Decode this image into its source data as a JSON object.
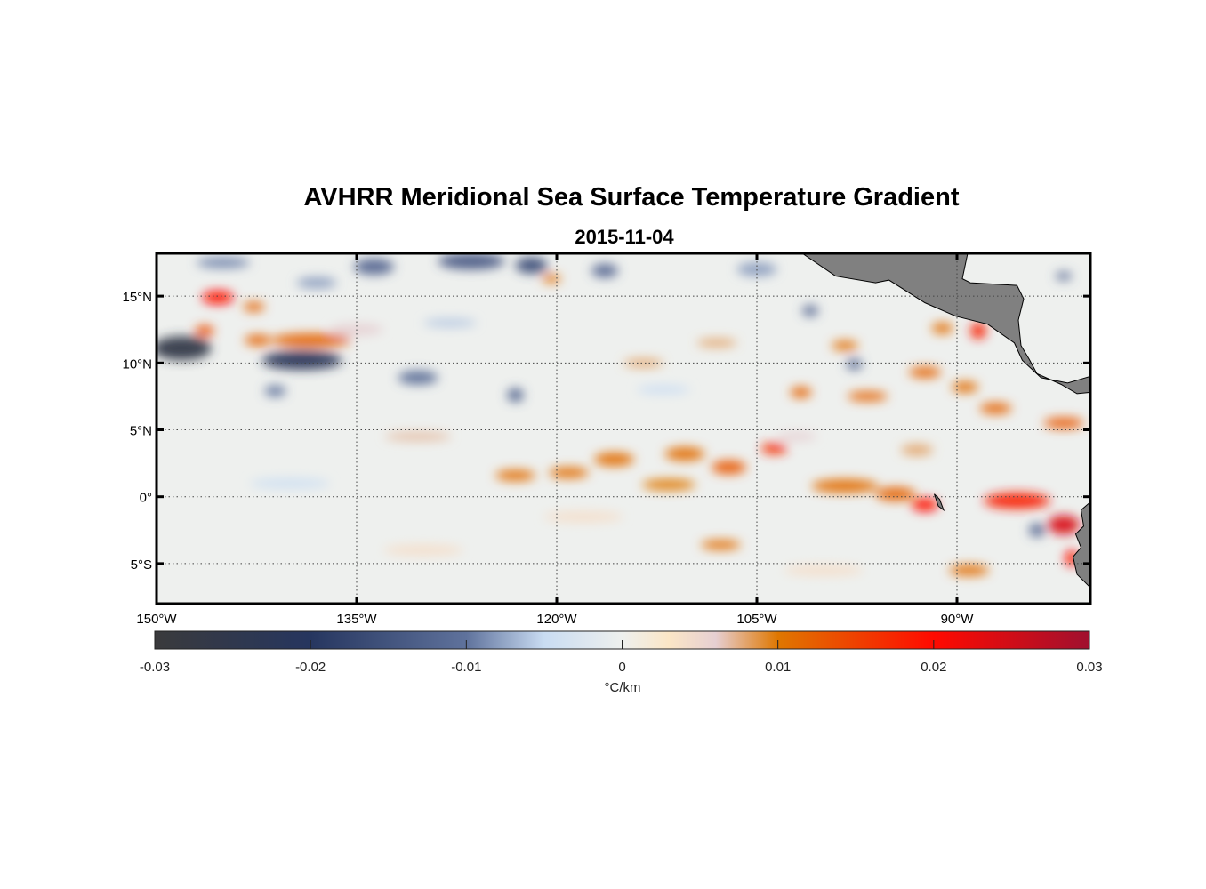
{
  "chart_data": {
    "type": "heatmap",
    "title": "AVHRR Meridional Sea Surface Temperature Gradient",
    "subtitle": "2015-11-04",
    "xlim": [
      -150,
      -80
    ],
    "ylim": [
      -8,
      18.2
    ],
    "grid": true,
    "x_ticks": [
      {
        "value": -150,
        "label": "150°W"
      },
      {
        "value": -135,
        "label": "135°W"
      },
      {
        "value": -120,
        "label": "120°W"
      },
      {
        "value": -105,
        "label": "105°W"
      },
      {
        "value": -90,
        "label": "90°W"
      }
    ],
    "y_ticks": [
      {
        "value": 15,
        "label": "15°N"
      },
      {
        "value": 10,
        "label": "10°N"
      },
      {
        "value": 5,
        "label": "5°N"
      },
      {
        "value": 0,
        "label": "0°"
      },
      {
        "value": -5,
        "label": "5°S"
      }
    ],
    "colorbar": {
      "label": "°C/km",
      "range": [
        -0.03,
        0.03
      ],
      "ticks": [
        {
          "value": -0.03,
          "label": "-0.03"
        },
        {
          "value": -0.02,
          "label": "-0.02"
        },
        {
          "value": -0.01,
          "label": "-0.01"
        },
        {
          "value": 0,
          "label": "0"
        },
        {
          "value": 0.01,
          "label": "0.01"
        },
        {
          "value": 0.02,
          "label": "0.02"
        },
        {
          "value": 0.03,
          "label": "0.03"
        }
      ],
      "stops": [
        [
          -0.03,
          "#3a3a3c"
        ],
        [
          -0.02,
          "#26365f"
        ],
        [
          -0.01,
          "#5f729c"
        ],
        [
          -0.005,
          "#c9dcf2"
        ],
        [
          0,
          "#eef0ee"
        ],
        [
          0.003,
          "#fbe6c6"
        ],
        [
          0.006,
          "#e6cfd2"
        ],
        [
          0.01,
          "#df7700"
        ],
        [
          0.02,
          "#ff0a00"
        ],
        [
          0.03,
          "#a0102f"
        ]
      ]
    },
    "features": [
      [
        -145.4,
        14.9,
        1.2,
        0.5,
        0.02
      ],
      [
        -148.1,
        11.1,
        2.2,
        0.9,
        -0.026
      ],
      [
        -139.1,
        10.2,
        3.0,
        0.7,
        -0.022
      ],
      [
        -138.4,
        11.7,
        3.0,
        0.5,
        0.012
      ],
      [
        -142.4,
        11.7,
        1.0,
        0.4,
        0.012
      ],
      [
        -146.4,
        12.4,
        0.7,
        0.4,
        0.014
      ],
      [
        -142.7,
        14.2,
        0.8,
        0.35,
        0.012
      ],
      [
        -133.7,
        17.2,
        1.5,
        0.6,
        -0.012
      ],
      [
        -126.4,
        17.6,
        2.5,
        0.6,
        -0.014
      ],
      [
        -121.9,
        17.3,
        1.2,
        0.6,
        -0.016
      ],
      [
        -116.4,
        16.9,
        1.0,
        0.5,
        -0.012
      ],
      [
        -120.4,
        16.3,
        0.7,
        0.3,
        0.011
      ],
      [
        -130.4,
        8.9,
        1.5,
        0.5,
        -0.011
      ],
      [
        -123.1,
        7.6,
        0.6,
        0.5,
        -0.013
      ],
      [
        -141.1,
        7.9,
        0.8,
        0.4,
        -0.01
      ],
      [
        -130.4,
        4.5,
        2.5,
        0.3,
        0.007
      ],
      [
        -123.1,
        1.6,
        1.5,
        0.4,
        0.011
      ],
      [
        -119.1,
        1.8,
        1.5,
        0.4,
        0.011
      ],
      [
        -115.7,
        2.8,
        1.5,
        0.5,
        0.011
      ],
      [
        -110.4,
        3.2,
        1.5,
        0.5,
        0.011
      ],
      [
        -107.1,
        2.2,
        1.3,
        0.5,
        0.013
      ],
      [
        -103.7,
        3.6,
        1.0,
        0.4,
        0.017
      ],
      [
        -111.6,
        0.9,
        2.0,
        0.4,
        0.01
      ],
      [
        -98.4,
        0.8,
        2.5,
        0.5,
        0.011
      ],
      [
        -92.4,
        -0.6,
        1.0,
        0.5,
        0.02
      ],
      [
        -94.6,
        0.2,
        1.5,
        0.5,
        0.012
      ],
      [
        -85.5,
        -0.3,
        2.5,
        0.6,
        0.018
      ],
      [
        -82.0,
        -2.1,
        1.2,
        0.7,
        0.024
      ],
      [
        -88.4,
        12.4,
        0.6,
        0.6,
        0.018
      ],
      [
        -91.1,
        12.6,
        0.8,
        0.4,
        0.011
      ],
      [
        -92.4,
        9.3,
        1.2,
        0.4,
        0.012
      ],
      [
        -96.7,
        7.5,
        1.5,
        0.35,
        0.012
      ],
      [
        -101.7,
        7.8,
        0.8,
        0.4,
        0.012
      ],
      [
        -89.4,
        8.2,
        1.0,
        0.4,
        0.011
      ],
      [
        -87.1,
        6.6,
        1.2,
        0.4,
        0.012
      ],
      [
        -82.0,
        5.5,
        1.5,
        0.4,
        0.013
      ],
      [
        -107.7,
        -3.6,
        1.5,
        0.35,
        0.011
      ],
      [
        -98.4,
        11.3,
        1.0,
        0.35,
        0.011
      ],
      [
        -97.7,
        9.9,
        0.6,
        0.4,
        -0.012
      ],
      [
        -101.0,
        13.9,
        0.6,
        0.4,
        -0.012
      ],
      [
        -89.1,
        -5.5,
        1.5,
        0.4,
        0.011
      ],
      [
        -81.4,
        -4.6,
        0.5,
        0.6,
        0.02
      ],
      [
        -113.5,
        10.0,
        1.5,
        0.3,
        0.008
      ],
      [
        -108.0,
        11.5,
        1.5,
        0.3,
        0.008
      ],
      [
        -102.0,
        4.5,
        1.5,
        0.3,
        0.006
      ],
      [
        -84.0,
        -2.5,
        0.6,
        0.5,
        -0.012
      ],
      [
        -93.0,
        3.5,
        1.2,
        0.4,
        0.008
      ],
      [
        -112.0,
        8.0,
        2.0,
        0.3,
        -0.005
      ],
      [
        -135.0,
        12.5,
        2.0,
        0.4,
        0.006
      ],
      [
        -128.0,
        13.0,
        2.0,
        0.3,
        -0.006
      ],
      [
        -145.0,
        17.5,
        2.0,
        0.4,
        -0.009
      ],
      [
        -138.0,
        16.0,
        1.5,
        0.4,
        -0.008
      ],
      [
        -105.0,
        17.0,
        1.5,
        0.5,
        -0.008
      ],
      [
        -118.0,
        -1.5,
        3.0,
        0.4,
        0.004
      ],
      [
        -140.0,
        1.0,
        3.0,
        0.4,
        -0.004
      ],
      [
        -130.0,
        -4.0,
        3.0,
        0.4,
        0.004
      ],
      [
        -100.0,
        -5.5,
        3.0,
        0.4,
        0.004
      ],
      [
        -82.0,
        16.5,
        0.6,
        0.3,
        -0.012
      ]
    ],
    "land": [
      [
        [
          -101.6,
          18.2
        ],
        [
          -99.1,
          16.5
        ],
        [
          -96.1,
          16.0
        ],
        [
          -95.1,
          16.2
        ],
        [
          -92.4,
          14.5
        ],
        [
          -90.1,
          13.5
        ],
        [
          -87.7,
          12.9
        ],
        [
          -85.7,
          11.5
        ],
        [
          -85.1,
          10.2
        ],
        [
          -83.7,
          8.9
        ],
        [
          -81.7,
          8.5
        ],
        [
          -80,
          9.0
        ],
        [
          -80,
          7.8
        ],
        [
          -81,
          7.7
        ],
        [
          -82.2,
          8.4
        ],
        [
          -84.0,
          9.2
        ],
        [
          -84.6,
          10.3
        ],
        [
          -85.2,
          11.3
        ],
        [
          -85.4,
          13.2
        ],
        [
          -85.0,
          14.8
        ],
        [
          -85.5,
          15.8
        ],
        [
          -87.2,
          15.9
        ],
        [
          -89.0,
          16.0
        ],
        [
          -89.6,
          16.3
        ],
        [
          -89.2,
          18.2
        ]
      ],
      [
        [
          -80,
          -0.4
        ],
        [
          -80.7,
          -1.0
        ],
        [
          -80.5,
          -2.2
        ],
        [
          -81.1,
          -2.8
        ],
        [
          -80.7,
          -3.8
        ],
        [
          -81.3,
          -4.5
        ],
        [
          -81.0,
          -5.8
        ],
        [
          -80,
          -6.8
        ]
      ],
      [
        [
          -91.7,
          0.2
        ],
        [
          -91.4,
          -0.7
        ],
        [
          -91.0,
          -1.0
        ],
        [
          -91.3,
          -0.2
        ]
      ]
    ]
  }
}
